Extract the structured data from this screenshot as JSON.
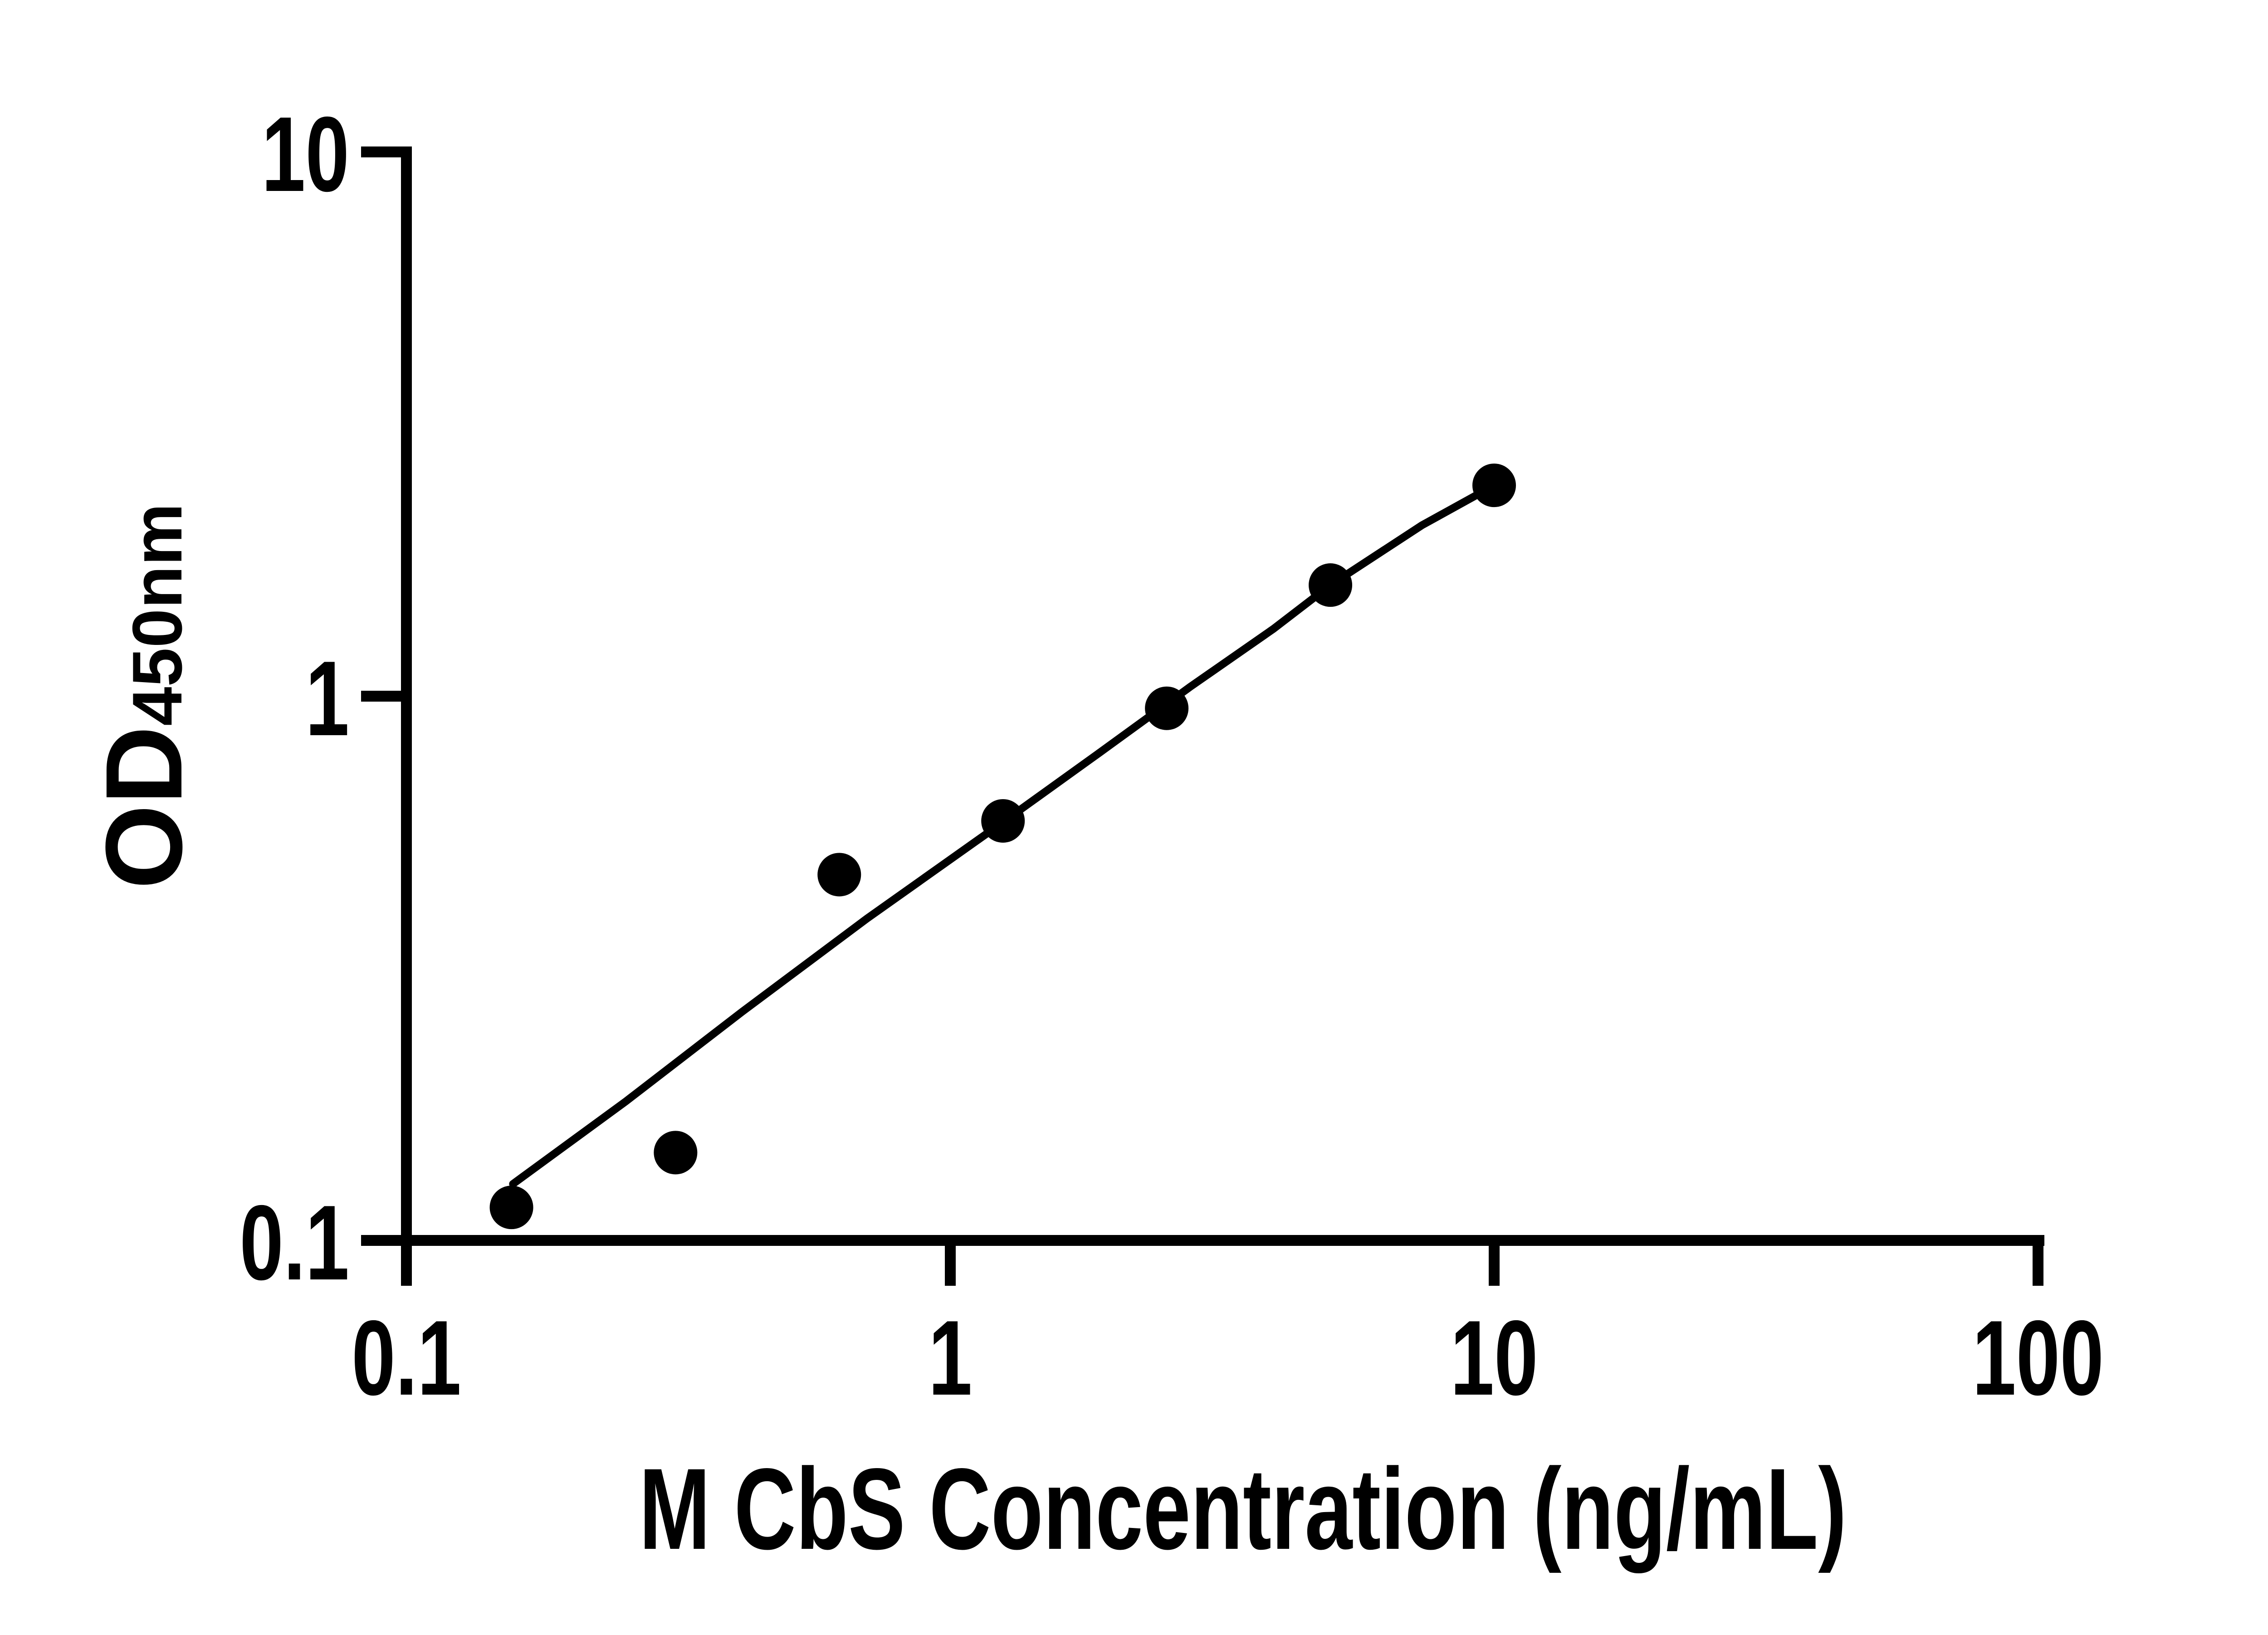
{
  "figure": {
    "background": "#ffffff",
    "ink": "#000000",
    "style": "prism-like standard-curve plot, axes bottom-left only, no grid, no legend"
  },
  "chart_data": {
    "type": "scatter",
    "title": "",
    "xlabel": "M CbS Concentration (ng/mL)",
    "ylabel": "OD450nm",
    "ylabel_main": "OD",
    "ylabel_sub": "450nm",
    "x_scale": "log10",
    "y_scale": "log10",
    "xlim": [
      0.1,
      100
    ],
    "ylim": [
      0.1,
      10
    ],
    "grid": false,
    "legend": "none",
    "x_ticks": [
      {
        "value": 0.1,
        "label": "0.1"
      },
      {
        "value": 1,
        "label": "1"
      },
      {
        "value": 10,
        "label": "10"
      },
      {
        "value": 100,
        "label": "100"
      }
    ],
    "y_ticks": [
      {
        "value": 0.1,
        "label": "0.1"
      },
      {
        "value": 1,
        "label": "1"
      },
      {
        "value": 10,
        "label": "10"
      }
    ],
    "series": [
      {
        "name": "M CbS standard",
        "marker": "filled-circle",
        "color": "#000000",
        "points": [
          {
            "x": 0.156,
            "y": 0.115
          },
          {
            "x": 0.3125,
            "y": 0.145
          },
          {
            "x": 0.625,
            "y": 0.47
          },
          {
            "x": 1.25,
            "y": 0.59
          },
          {
            "x": 2.5,
            "y": 0.95
          },
          {
            "x": 5,
            "y": 1.6
          },
          {
            "x": 10,
            "y": 2.44
          }
        ]
      }
    ],
    "fit_curve": {
      "name": "standard-curve fit line",
      "color": "#000000",
      "samples": [
        [
          0.157,
          0.127
        ],
        [
          0.253,
          0.18
        ],
        [
          0.414,
          0.263
        ],
        [
          0.702,
          0.39
        ],
        [
          1.25,
          0.587
        ],
        [
          1.88,
          0.787
        ],
        [
          2.76,
          1.04
        ],
        [
          3.93,
          1.33
        ],
        [
          5.0,
          1.6
        ],
        [
          7.36,
          2.06
        ],
        [
          10.0,
          2.44
        ]
      ]
    }
  }
}
